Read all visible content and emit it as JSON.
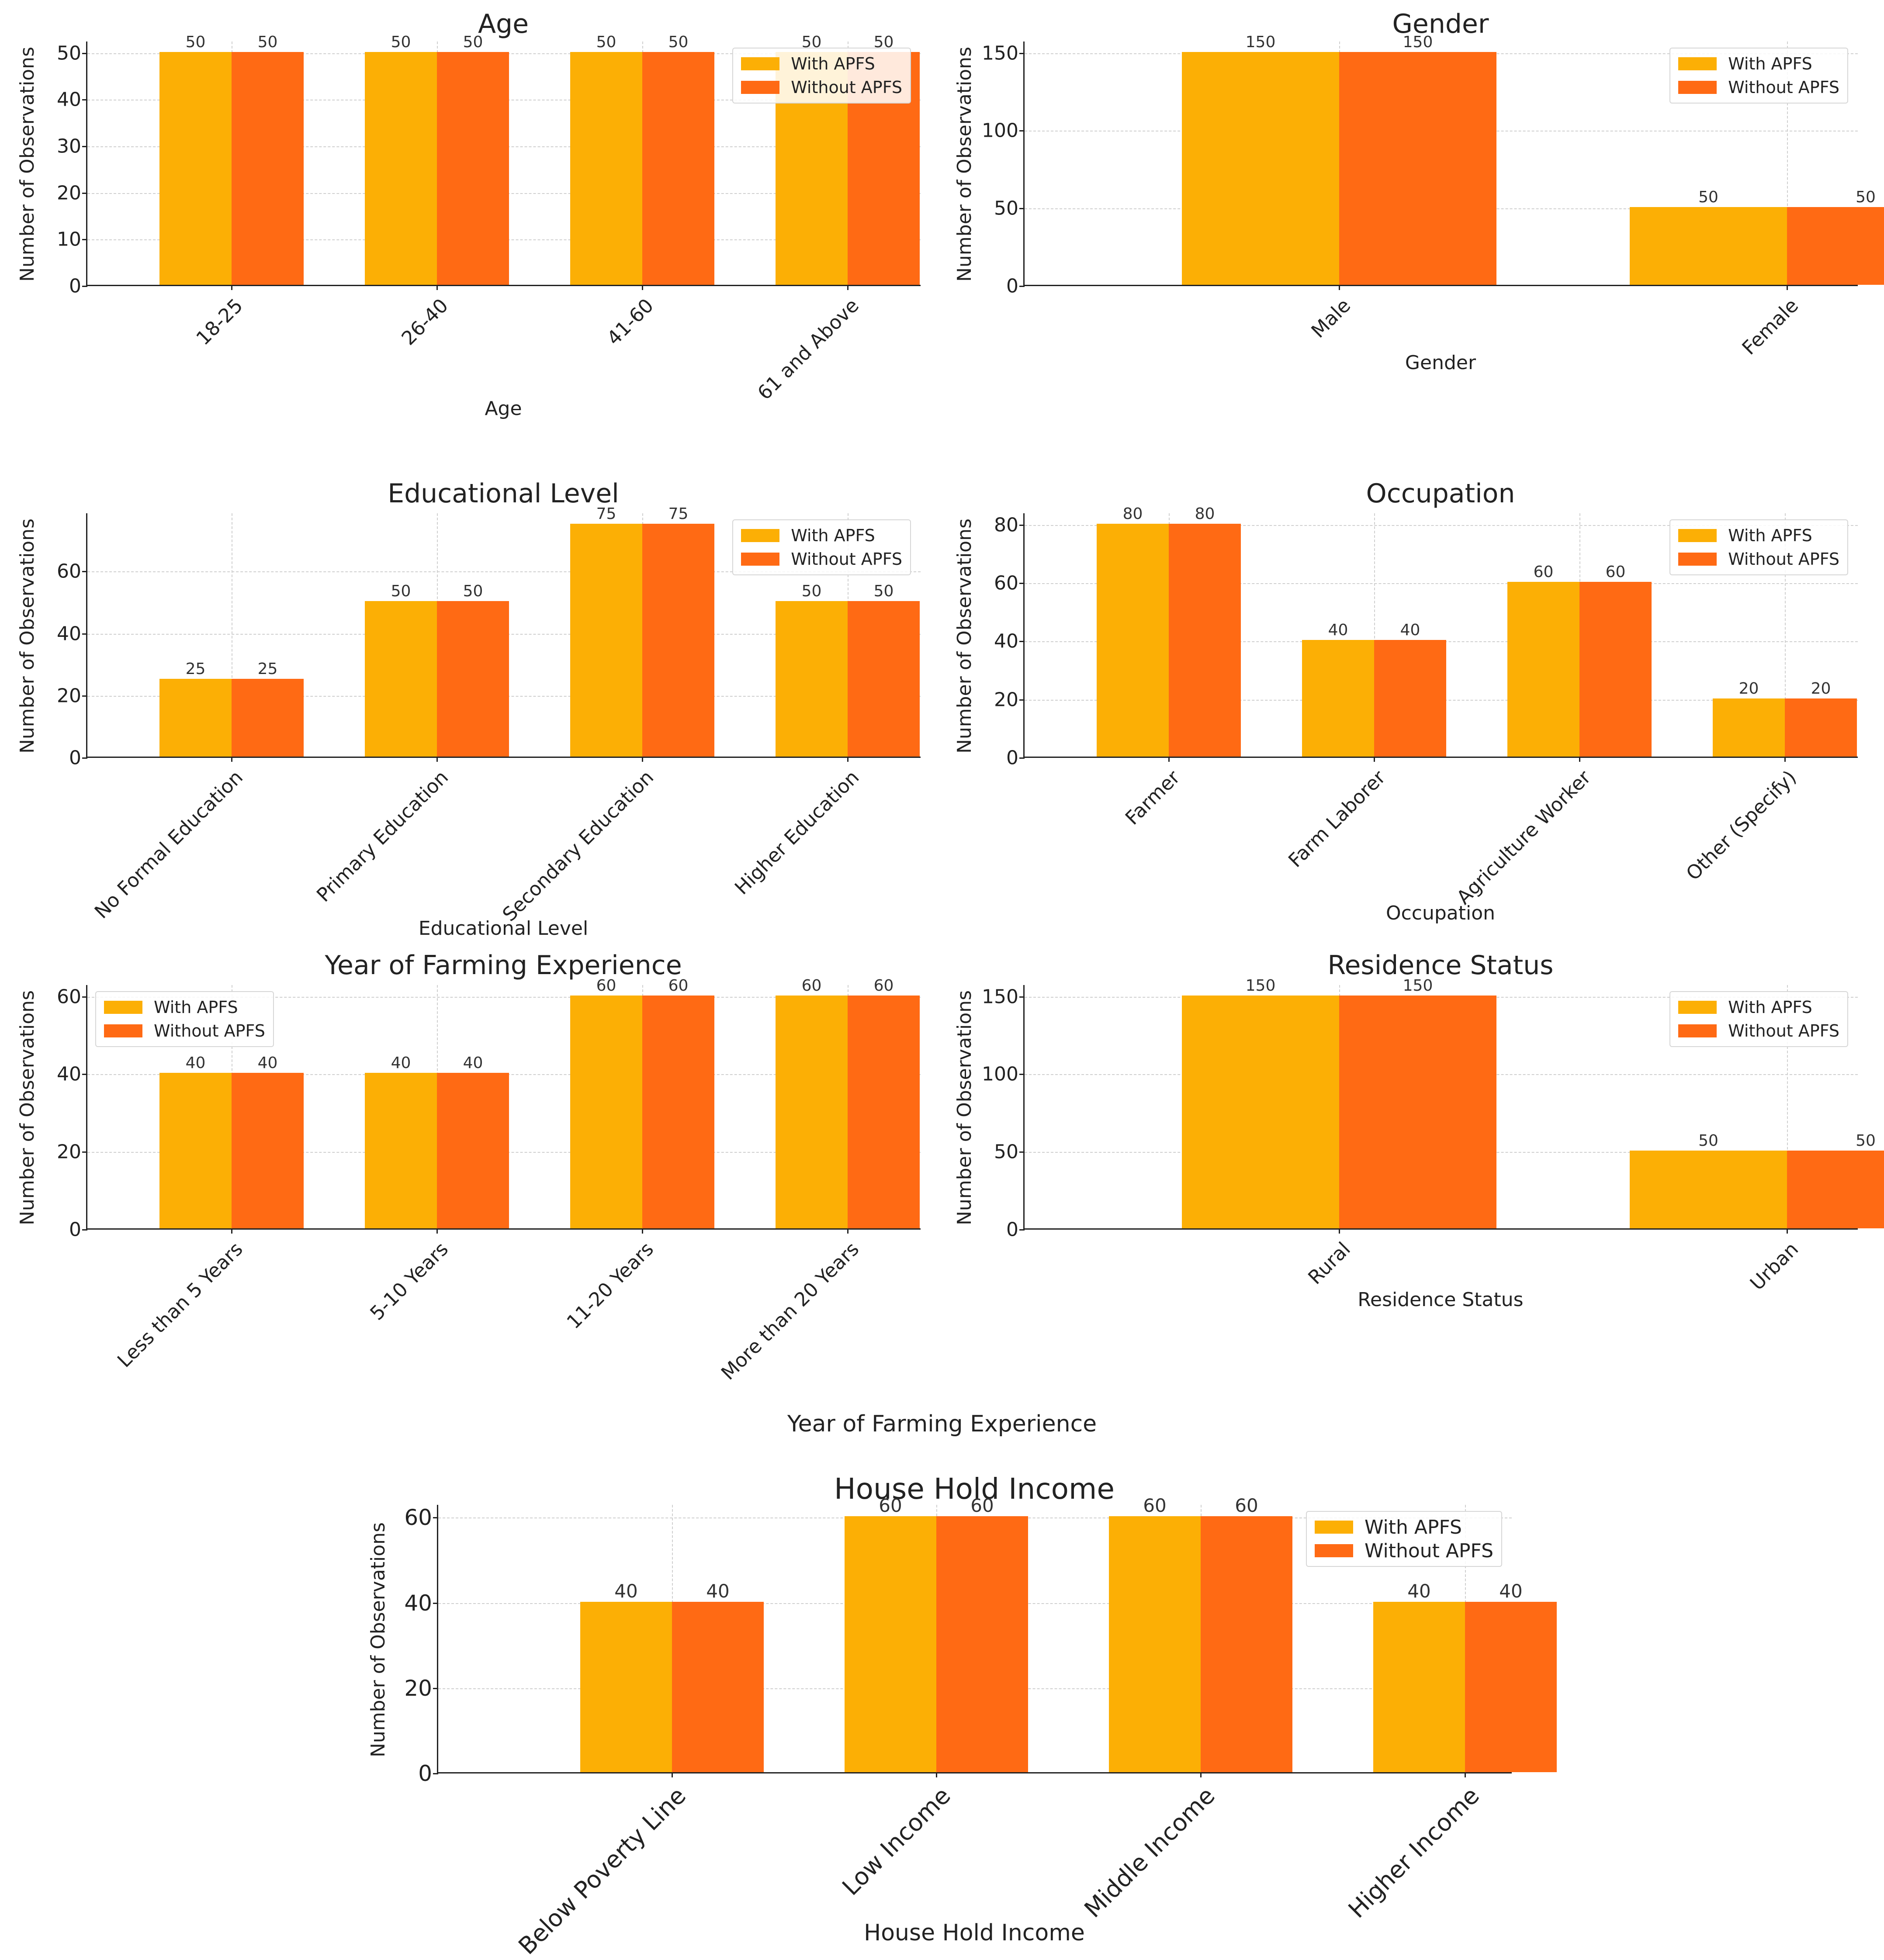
{
  "ylabel": "Number of Observations",
  "series_colors": {
    "with": "#FCAF05",
    "without": "#FF6A14"
  },
  "chart_data": [
    {
      "type": "bar",
      "title": "Age",
      "xlabel": "Age",
      "ylabel": "Number of Observations",
      "categories": [
        "18-25",
        "26-40",
        "41-60",
        "61 and Above"
      ],
      "series": [
        {
          "name": "With APFS",
          "values": [
            50,
            50,
            50,
            50
          ]
        },
        {
          "name": "Without APFS",
          "values": [
            50,
            50,
            50,
            50
          ]
        }
      ],
      "ylim": [
        0,
        52.5
      ],
      "yticks": [
        0,
        10,
        20,
        30,
        40,
        50
      ],
      "legend": "top-right",
      "grid": true
    },
    {
      "type": "bar",
      "title": "Gender",
      "xlabel": "Gender",
      "ylabel": "Number of Observations",
      "categories": [
        "Male",
        "Female"
      ],
      "series": [
        {
          "name": "With APFS",
          "values": [
            150,
            50
          ]
        },
        {
          "name": "Without APFS",
          "values": [
            150,
            50
          ]
        }
      ],
      "ylim": [
        0,
        157.5
      ],
      "yticks": [
        0,
        50,
        100,
        150
      ],
      "legend": "top-right",
      "grid": true
    },
    {
      "type": "bar",
      "title": "Educational Level",
      "xlabel": "Educational Level",
      "ylabel": "Number of Observations",
      "categories": [
        "No Formal Education",
        "Primary Education",
        "Secondary Education",
        "Higher Education"
      ],
      "series": [
        {
          "name": "With APFS",
          "values": [
            25,
            50,
            75,
            50
          ]
        },
        {
          "name": "Without APFS",
          "values": [
            25,
            50,
            75,
            50
          ]
        }
      ],
      "ylim": [
        0,
        78.75
      ],
      "yticks": [
        0,
        20,
        40,
        60
      ],
      "legend": "top-right",
      "grid": true
    },
    {
      "type": "bar",
      "title": "Occupation",
      "xlabel": "Occupation",
      "ylabel": "Number of Observations",
      "categories": [
        "Farmer",
        "Farm Laborer",
        "Agriculture Worker",
        "Other (Specify)"
      ],
      "series": [
        {
          "name": "With APFS",
          "values": [
            80,
            40,
            60,
            20
          ]
        },
        {
          "name": "Without APFS",
          "values": [
            80,
            40,
            60,
            20
          ]
        }
      ],
      "ylim": [
        0,
        84
      ],
      "yticks": [
        0,
        20,
        40,
        60,
        80
      ],
      "legend": "top-right",
      "grid": true
    },
    {
      "type": "bar",
      "title": "Year of Farming Experience",
      "xlabel": "",
      "ylabel": "Number of Observations",
      "categories": [
        "Less than 5 Years",
        "5-10 Years",
        "11-20 Years",
        "More than 20 Years"
      ],
      "series": [
        {
          "name": "With APFS",
          "values": [
            40,
            40,
            60,
            60
          ]
        },
        {
          "name": "Without APFS",
          "values": [
            40,
            40,
            60,
            60
          ]
        }
      ],
      "ylim": [
        0,
        63
      ],
      "yticks": [
        0,
        20,
        40,
        60
      ],
      "legend": "top-left",
      "grid": true
    },
    {
      "type": "bar",
      "title": "Residence Status",
      "xlabel": "Residence Status",
      "ylabel": "Number of Observations",
      "categories": [
        "Rural",
        "Urban"
      ],
      "series": [
        {
          "name": "With APFS",
          "values": [
            150,
            50
          ]
        },
        {
          "name": "Without APFS",
          "values": [
            150,
            50
          ]
        }
      ],
      "ylim": [
        0,
        157.5
      ],
      "yticks": [
        0,
        50,
        100,
        150
      ],
      "legend": "top-right",
      "grid": true
    },
    {
      "type": "bar",
      "title": "House Hold Income",
      "xlabel": "House Hold Income",
      "ylabel": "Number of Observations",
      "categories": [
        "Below Poverty Line",
        "Low Income",
        "Middle Income",
        "Higher Income"
      ],
      "series": [
        {
          "name": "With APFS",
          "values": [
            40,
            60,
            60,
            40
          ]
        },
        {
          "name": "Without APFS",
          "values": [
            40,
            60,
            60,
            40
          ]
        }
      ],
      "ylim": [
        0,
        63
      ],
      "yticks": [
        0,
        20,
        40,
        60
      ],
      "legend": "top-right",
      "grid": true
    }
  ],
  "extra_labels": {
    "farming_xlabel": "Year of Farming Experience"
  }
}
